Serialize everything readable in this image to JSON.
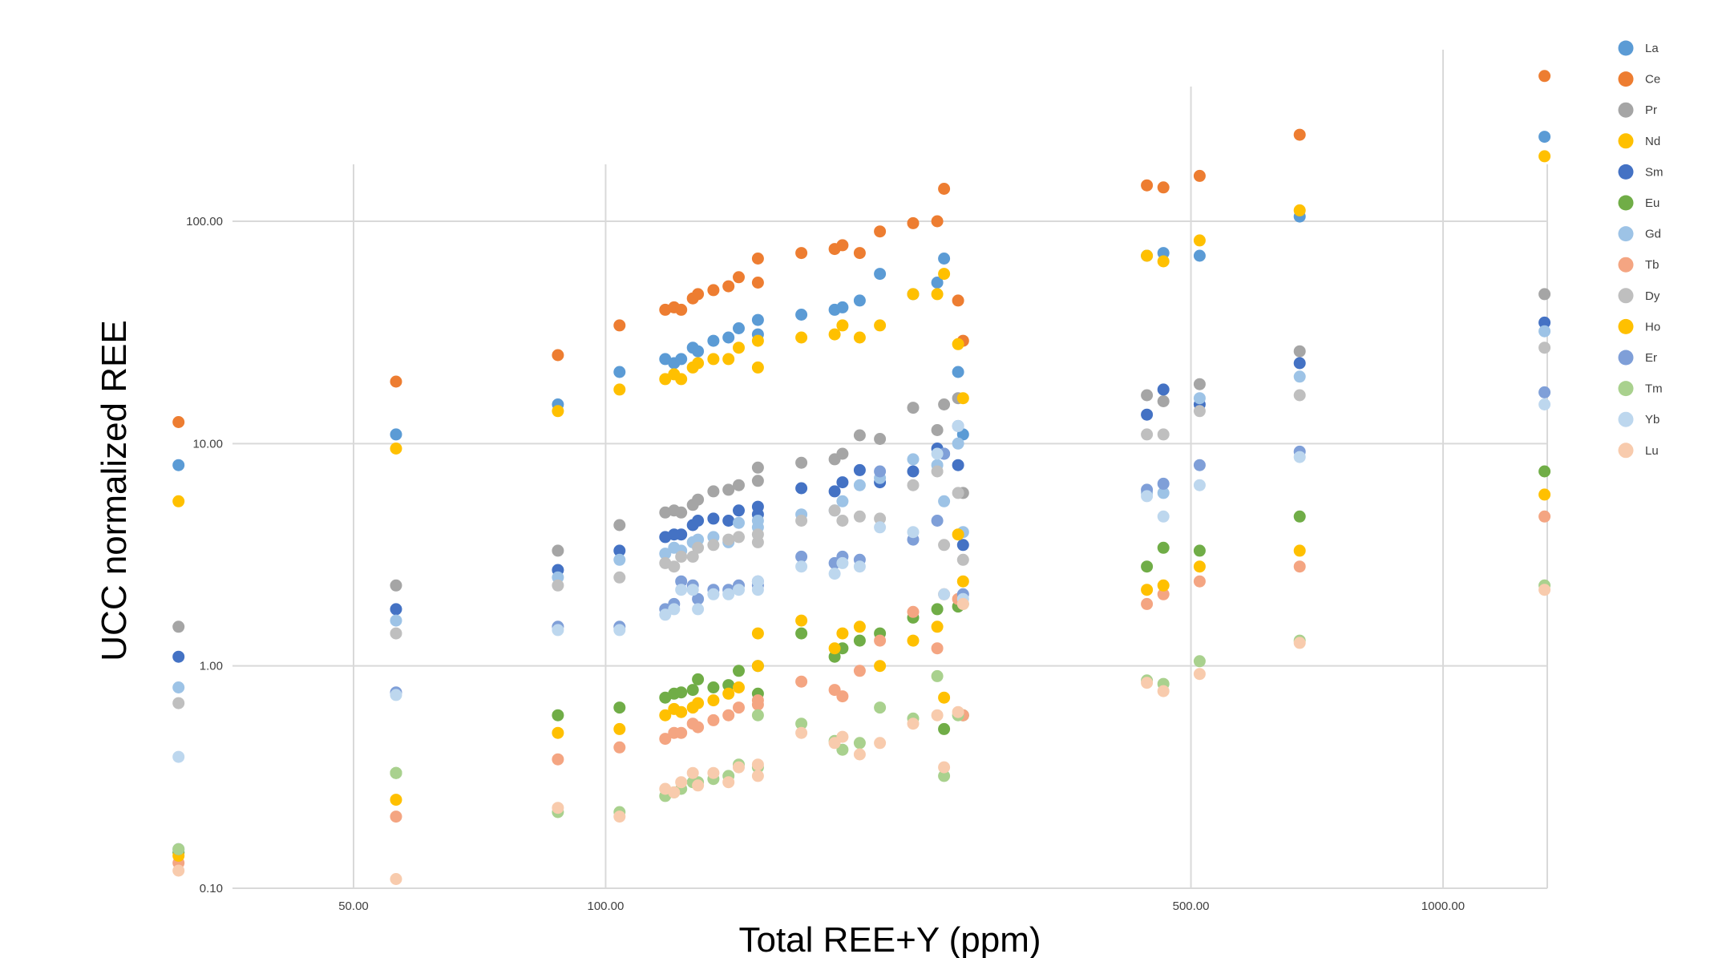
{
  "chart_data": {
    "type": "scatter",
    "title": "",
    "xlabel": "Total REE+Y (ppm)",
    "ylabel": "UCC normalized REE",
    "x_scale": "log",
    "y_scale": "log",
    "xlim": [
      30,
      1250
    ],
    "ylim": [
      0.1,
      500
    ],
    "x_ticks": [
      50,
      100,
      500,
      1000
    ],
    "x_tick_labels": [
      "50.00",
      "100.00",
      "500.00",
      "1000.00"
    ],
    "y_ticks": [
      0.1,
      1,
      10,
      100
    ],
    "y_tick_labels": [
      "0.10",
      "1.00",
      "10.00",
      "100.00"
    ],
    "grid": true,
    "legend_position": "right",
    "x": [
      30.9,
      56.2,
      87.7,
      103.9,
      117.8,
      120.7,
      123.1,
      127.1,
      128.9,
      134.5,
      140.2,
      144.2,
      152.0,
      152.0,
      171.3,
      187.7,
      191.8,
      201.1,
      212.6,
      232.9,
      248.9,
      253.6,
      263.6,
      267.2,
      443.0,
      463.5,
      512.1,
      674.3,
      1322.0
    ],
    "series": [
      {
        "name": "La",
        "color": "#5b9bd5",
        "values": [
          8.0,
          11.0,
          15.0,
          21.0,
          24.0,
          23.0,
          24.0,
          27.0,
          26.0,
          29.0,
          30.0,
          33.0,
          31.0,
          36.0,
          38.0,
          40.0,
          41.0,
          44.0,
          58.0,
          47.0,
          53.0,
          68.0,
          21.0,
          11.0,
          70.0,
          72.0,
          70.0,
          105.0,
          240.0
        ]
      },
      {
        "name": "Ce",
        "color": "#ed7d31",
        "values": [
          12.5,
          19.0,
          25.0,
          34.0,
          40.0,
          41.0,
          40.0,
          45.0,
          47.0,
          49.0,
          51.0,
          56.0,
          53.0,
          68.0,
          72.0,
          75.0,
          78.0,
          72.0,
          90.0,
          98.0,
          100.0,
          140.0,
          44.0,
          29.0,
          145.0,
          142.0,
          160.0,
          245.0,
          450.0
        ]
      },
      {
        "name": "Pr",
        "color": "#a5a5a5",
        "values": [
          1.5,
          2.3,
          3.3,
          4.3,
          4.9,
          5.0,
          4.9,
          5.3,
          5.6,
          6.1,
          6.2,
          6.5,
          6.8,
          7.8,
          8.2,
          8.5,
          9.0,
          10.9,
          10.5,
          14.5,
          11.5,
          15.0,
          16.0,
          6.0,
          16.5,
          15.5,
          18.5,
          26.0,
          47.0
        ]
      },
      {
        "name": "Nd",
        "color": "#ffc000",
        "values": [
          5.5,
          9.5,
          14.0,
          17.5,
          19.5,
          20.5,
          19.5,
          22.0,
          23.0,
          24.0,
          24.0,
          27.0,
          22.0,
          29.0,
          30.0,
          31.0,
          34.0,
          30.0,
          34.0,
          47.0,
          47.0,
          58.0,
          28.0,
          16.0,
          70.0,
          66.0,
          82.0,
          112.0,
          196.0
        ]
      },
      {
        "name": "Sm",
        "color": "#4472c4",
        "values": [
          1.1,
          1.8,
          2.7,
          3.3,
          3.8,
          3.9,
          3.9,
          4.3,
          4.5,
          4.6,
          4.5,
          5.0,
          4.8,
          5.2,
          6.3,
          6.1,
          6.7,
          7.6,
          6.7,
          7.5,
          9.5,
          9.0,
          8.0,
          3.5,
          13.5,
          17.5,
          15.0,
          23.0,
          35.0
        ]
      },
      {
        "name": "Eu",
        "color": "#70ad47",
        "values": [
          0.145,
          0.33,
          0.6,
          0.65,
          0.72,
          0.75,
          0.76,
          0.78,
          0.87,
          0.8,
          0.82,
          0.95,
          0.75,
          1.0,
          1.4,
          1.1,
          1.2,
          1.3,
          1.4,
          1.65,
          1.8,
          0.52,
          1.85,
          0.6,
          2.8,
          3.4,
          3.3,
          4.7,
          7.5
        ]
      },
      {
        "name": "Gd",
        "color": "#9dc3e6",
        "values": [
          0.8,
          1.6,
          2.5,
          3.0,
          3.2,
          3.4,
          3.3,
          3.6,
          3.7,
          3.8,
          3.6,
          4.4,
          4.2,
          4.5,
          4.8,
          5.0,
          5.5,
          6.5,
          7.0,
          8.5,
          8.0,
          5.5,
          10.0,
          4.0,
          6.0,
          6.0,
          16.0,
          20.0,
          32.0
        ]
      },
      {
        "name": "Tb",
        "color": "#f4a582",
        "values": [
          0.13,
          0.21,
          0.38,
          0.43,
          0.47,
          0.5,
          0.5,
          0.55,
          0.53,
          0.57,
          0.6,
          0.65,
          0.67,
          0.7,
          0.85,
          0.78,
          0.73,
          0.95,
          1.3,
          1.75,
          1.2,
          2.1,
          2.0,
          0.6,
          1.9,
          2.1,
          2.4,
          2.8,
          4.7
        ]
      },
      {
        "name": "Dy",
        "color": "#bfbfbf",
        "values": [
          0.68,
          1.4,
          2.3,
          2.5,
          2.9,
          2.8,
          3.1,
          3.1,
          3.4,
          3.5,
          3.7,
          3.8,
          3.6,
          3.9,
          4.5,
          5.0,
          4.5,
          4.7,
          4.6,
          6.5,
          7.5,
          3.5,
          6.0,
          3.0,
          11.0,
          11.0,
          14.0,
          16.5,
          27.0
        ]
      },
      {
        "name": "Ho",
        "color": "#ffc000",
        "values": [
          0.14,
          0.25,
          0.5,
          0.52,
          0.6,
          0.64,
          0.62,
          0.65,
          0.68,
          0.7,
          0.75,
          0.8,
          1.4,
          1.0,
          1.6,
          1.2,
          1.4,
          1.5,
          1.0,
          1.3,
          1.5,
          0.72,
          3.9,
          2.4,
          2.2,
          2.3,
          2.8,
          3.3,
          5.9
        ]
      },
      {
        "name": "Er",
        "color": "#7f9fd8",
        "values": [
          0.15,
          0.76,
          1.5,
          1.5,
          1.8,
          1.9,
          2.4,
          2.3,
          2.0,
          2.2,
          2.2,
          2.3,
          2.3,
          2.4,
          3.1,
          2.9,
          3.1,
          3.0,
          7.5,
          3.7,
          4.5,
          9.0,
          12.0,
          2.1,
          6.2,
          6.6,
          8.0,
          9.2,
          17.0
        ]
      },
      {
        "name": "Tm",
        "color": "#a9d18e",
        "values": [
          0.15,
          0.33,
          0.22,
          0.22,
          0.26,
          0.27,
          0.28,
          0.3,
          0.3,
          0.31,
          0.32,
          0.36,
          0.6,
          0.35,
          0.55,
          0.46,
          0.42,
          0.45,
          0.65,
          0.58,
          0.9,
          0.32,
          0.6,
          1.9,
          0.86,
          0.83,
          1.05,
          1.3,
          2.3
        ]
      },
      {
        "name": "Yb",
        "color": "#bdd7ee",
        "values": [
          0.39,
          0.74,
          1.45,
          1.45,
          1.7,
          1.8,
          2.2,
          2.2,
          1.8,
          2.1,
          2.1,
          2.2,
          2.2,
          2.4,
          2.8,
          2.6,
          2.9,
          2.8,
          4.2,
          4.0,
          9.0,
          2.1,
          12.0,
          2.0,
          5.8,
          4.7,
          6.5,
          8.7,
          15.0
        ]
      },
      {
        "name": "Lu",
        "color": "#f8cbad",
        "values": [
          0.12,
          0.11,
          0.23,
          0.21,
          0.28,
          0.27,
          0.3,
          0.33,
          0.29,
          0.33,
          0.3,
          0.35,
          0.32,
          0.36,
          0.5,
          0.45,
          0.48,
          0.4,
          0.45,
          0.55,
          0.6,
          0.35,
          0.62,
          1.9,
          0.84,
          0.77,
          0.92,
          1.27,
          2.2
        ]
      }
    ]
  }
}
